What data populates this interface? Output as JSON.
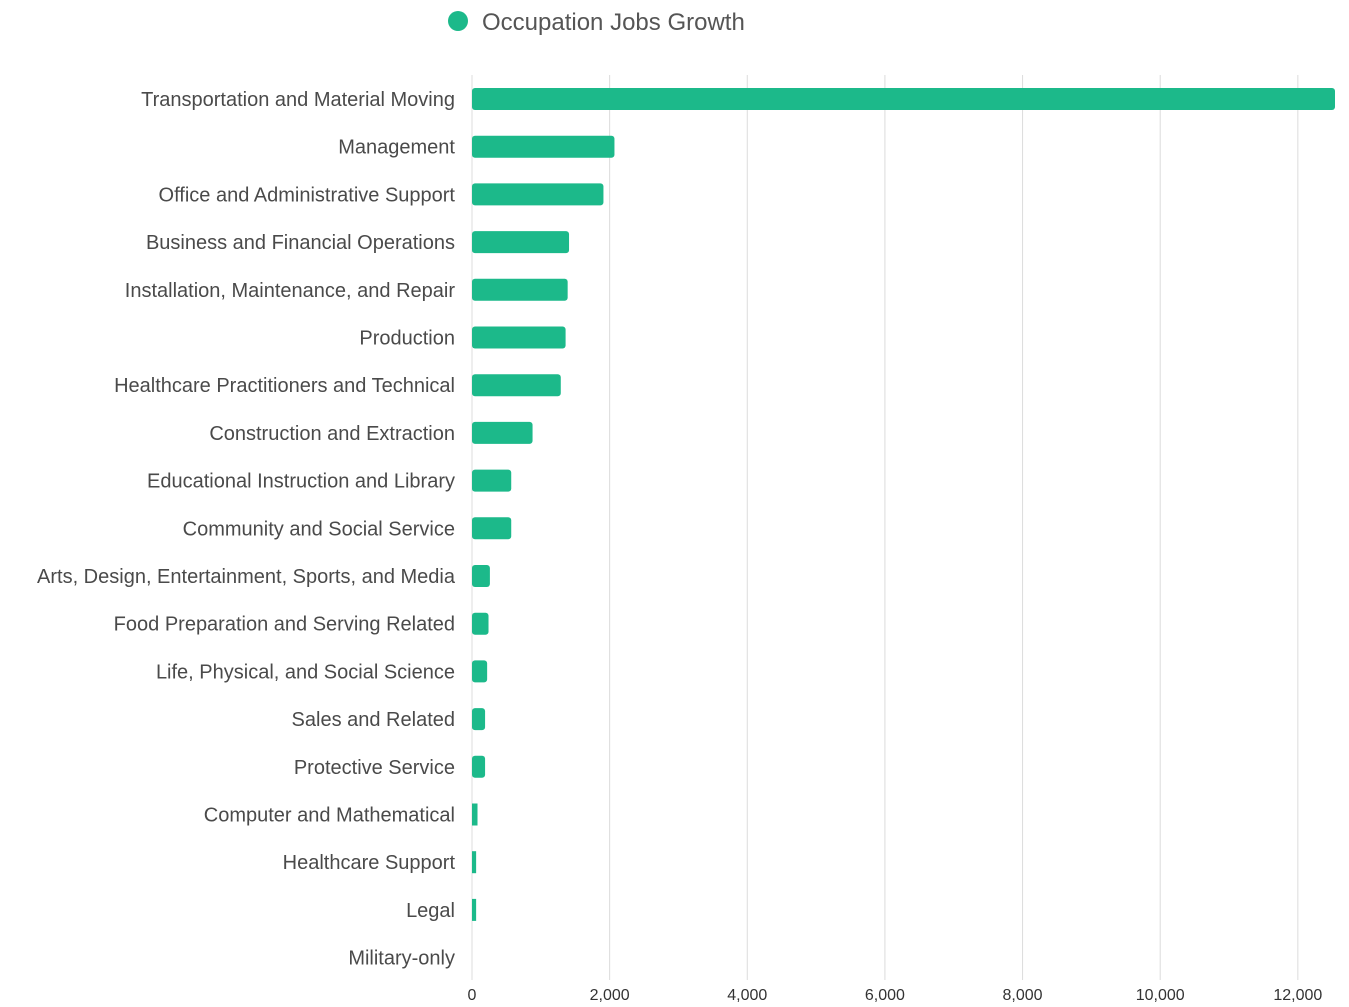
{
  "chart_data": {
    "type": "bar",
    "orientation": "horizontal",
    "categories": [
      "Transportation and Material Moving",
      "Management",
      "Office and Administrative Support",
      "Business and Financial Operations",
      "Installation, Maintenance, and Repair",
      "Production",
      "Healthcare Practitioners and Technical",
      "Construction and Extraction",
      "Educational Instruction and Library",
      "Community and Social Service",
      "Arts, Design, Entertainment, Sports, and Media",
      "Food Preparation and Serving Related",
      "Life, Physical, and Social Science",
      "Sales and Related",
      "Protective Service",
      "Computer and Mathematical",
      "Healthcare Support",
      "Legal",
      "Military-only"
    ],
    "series": [
      {
        "name": "Occupation Jobs Growth",
        "color": "#1cb98a",
        "values": [
          12540,
          2070,
          1910,
          1410,
          1390,
          1360,
          1290,
          880,
          570,
          570,
          260,
          240,
          220,
          190,
          190,
          80,
          60,
          60,
          0
        ]
      }
    ],
    "xlim": [
      0,
      12540
    ],
    "xticks": [
      0,
      2000,
      4000,
      6000,
      8000,
      10000,
      12000
    ],
    "xtick_labels": [
      "0",
      "2,000",
      "4,000",
      "6,000",
      "8,000",
      "10,000",
      "12,000"
    ],
    "grid": "vertical",
    "legend": "top-center"
  }
}
